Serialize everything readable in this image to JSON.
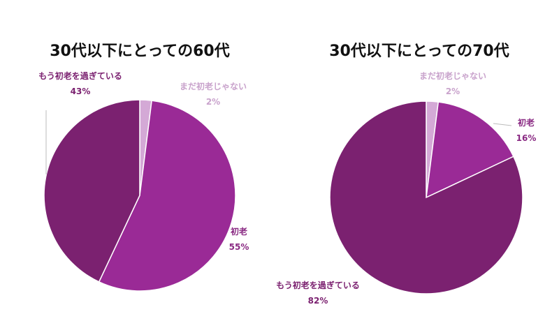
{
  "chart_data": [
    {
      "type": "pie",
      "title": "30代以下にとっての60代",
      "slices": [
        {
          "label": "まだ初老じゃない",
          "value": 2,
          "pct_text": "2%",
          "color": "#d4a9d6",
          "label_color": "#c9a3cc"
        },
        {
          "label": "初老",
          "value": 55,
          "pct_text": "55%",
          "color": "#9a2a96",
          "label_color": "#8a2a83"
        },
        {
          "label": "もう初老を過ぎている",
          "value": 43,
          "pct_text": "43%",
          "color": "#7b2170",
          "label_color": "#7b2170"
        }
      ]
    },
    {
      "type": "pie",
      "title": "30代以下にとっての70代",
      "slices": [
        {
          "label": "まだ初老じゃない",
          "value": 2,
          "pct_text": "2%",
          "color": "#d4a9d6",
          "label_color": "#c9a3cc"
        },
        {
          "label": "初老",
          "value": 16,
          "pct_text": "16%",
          "color": "#9a2a96",
          "label_color": "#8a2a83"
        },
        {
          "label": "もう初老を過ぎている",
          "value": 82,
          "pct_text": "82%",
          "color": "#7b2170",
          "label_color": "#7b2170"
        }
      ]
    }
  ]
}
